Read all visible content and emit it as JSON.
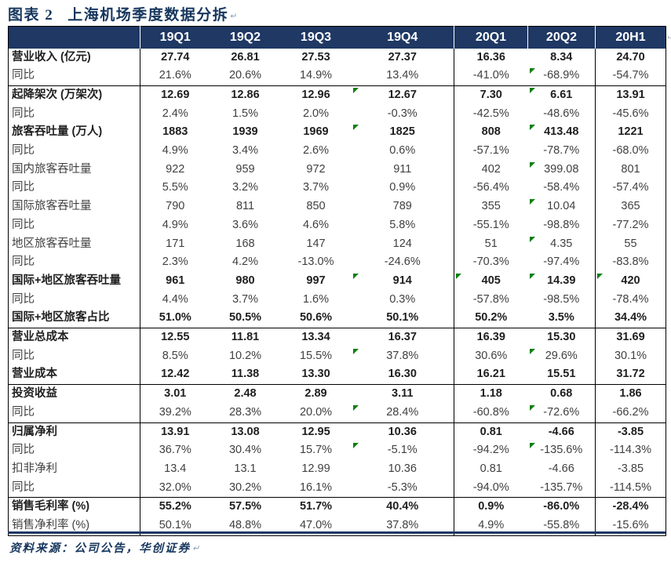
{
  "title": {
    "label": "图表 2",
    "text": "上海机场季度数据分拆",
    "return_mark": "↵"
  },
  "footer": {
    "text": "资料来源：公司公告，华创证券",
    "return_mark": "↵"
  },
  "icons": {
    "cell_flag": "green-corner-triangle",
    "return": "paragraph-return-arrow"
  },
  "colors": {
    "header_bg": "#1F3864",
    "title": "#17375E",
    "body_text": "#404040",
    "bold_text": "#1F1F1F",
    "marker_green": "#0B8010",
    "border": "#000000",
    "rule_navy": "#1F3864",
    "return_mark": "#8CA0BC"
  },
  "table": {
    "columns": [
      "19Q1",
      "19Q2",
      "19Q3",
      "19Q4",
      "20Q1",
      "20Q2",
      "20H1"
    ],
    "rows": [
      {
        "label": "营业收入 (亿元)",
        "bold": true,
        "values": [
          "27.74",
          "26.81",
          "27.53",
          "27.37",
          "16.36",
          "8.34",
          "24.70"
        ],
        "markers": []
      },
      {
        "label": "同比",
        "bold": false,
        "values": [
          "21.6%",
          "20.6%",
          "14.9%",
          "13.4%",
          "-41.0%",
          "-68.9%",
          "-54.7%"
        ],
        "markers": [
          5
        ]
      },
      {
        "label": "起降架次 (万架次)",
        "bold": true,
        "section": true,
        "values": [
          "12.69",
          "12.86",
          "12.96",
          "12.67",
          "7.30",
          "6.61",
          "13.91"
        ],
        "markers": [
          3,
          5
        ]
      },
      {
        "label": "同比",
        "bold": false,
        "values": [
          "2.4%",
          "1.5%",
          "2.0%",
          "-0.3%",
          "-42.5%",
          "-48.6%",
          "-45.6%"
        ],
        "markers": []
      },
      {
        "label": "旅客吞吐量 (万人)",
        "bold": true,
        "values": [
          "1883",
          "1939",
          "1969",
          "1825",
          "808",
          "413.48",
          "1221"
        ],
        "markers": [
          3,
          5
        ]
      },
      {
        "label": "同比",
        "bold": false,
        "values": [
          "4.9%",
          "3.4%",
          "2.6%",
          "0.6%",
          "-57.1%",
          "-78.7%",
          "-68.0%"
        ],
        "markers": []
      },
      {
        "label": "国内旅客吞吐量",
        "bold": false,
        "values": [
          "922",
          "959",
          "972",
          "911",
          "402",
          "399.08",
          "801"
        ],
        "markers": [
          5
        ]
      },
      {
        "label": "同比",
        "bold": false,
        "values": [
          "5.5%",
          "3.2%",
          "3.7%",
          "0.9%",
          "-56.4%",
          "-58.4%",
          "-57.4%"
        ],
        "markers": []
      },
      {
        "label": "国际旅客吞吐量",
        "bold": false,
        "values": [
          "790",
          "811",
          "850",
          "789",
          "355",
          "10.04",
          "365"
        ],
        "markers": [
          5
        ]
      },
      {
        "label": "同比",
        "bold": false,
        "values": [
          "4.9%",
          "3.6%",
          "4.6%",
          "5.8%",
          "-55.1%",
          "-98.8%",
          "-77.2%"
        ],
        "markers": []
      },
      {
        "label": "地区旅客吞吐量",
        "bold": false,
        "values": [
          "171",
          "168",
          "147",
          "124",
          "51",
          "4.35",
          "55"
        ],
        "markers": [
          5
        ]
      },
      {
        "label": "同比",
        "bold": false,
        "values": [
          "2.3%",
          "4.2%",
          "-13.0%",
          "-24.6%",
          "-70.3%",
          "-97.4%",
          "-83.8%"
        ],
        "markers": []
      },
      {
        "label": "国际+地区旅客吞吐量",
        "bold": true,
        "values": [
          "961",
          "980",
          "997",
          "914",
          "405",
          "14.39",
          "420"
        ],
        "markers": [
          3,
          4,
          5,
          6
        ]
      },
      {
        "label": "同比",
        "bold": false,
        "values": [
          "4.4%",
          "3.7%",
          "1.6%",
          "0.3%",
          "-57.8%",
          "-98.5%",
          "-78.4%"
        ],
        "markers": []
      },
      {
        "label": "国际+地区旅客占比",
        "bold": true,
        "values": [
          "51.0%",
          "50.5%",
          "50.6%",
          "50.1%",
          "50.2%",
          "3.5%",
          "34.4%"
        ],
        "markers": []
      },
      {
        "label": "营业总成本",
        "bold": true,
        "section": true,
        "values": [
          "12.55",
          "11.81",
          "13.34",
          "16.37",
          "16.39",
          "15.30",
          "31.69"
        ],
        "markers": []
      },
      {
        "label": "同比",
        "bold": false,
        "values": [
          "8.5%",
          "10.2%",
          "15.5%",
          "37.8%",
          "30.6%",
          "29.6%",
          "30.1%"
        ],
        "markers": [
          3,
          5
        ]
      },
      {
        "label": "营业成本",
        "bold": true,
        "values": [
          "12.42",
          "11.38",
          "13.30",
          "16.30",
          "16.21",
          "15.51",
          "31.72"
        ],
        "markers": []
      },
      {
        "label": "投资收益",
        "bold": true,
        "section": true,
        "values": [
          "3.01",
          "2.48",
          "2.89",
          "3.11",
          "1.18",
          "0.68",
          "1.86"
        ],
        "markers": []
      },
      {
        "label": "同比",
        "bold": false,
        "values": [
          "39.2%",
          "28.3%",
          "20.0%",
          "28.4%",
          "-60.8%",
          "-72.6%",
          "-66.2%"
        ],
        "markers": [
          3,
          5
        ]
      },
      {
        "label": "归属净利",
        "bold": true,
        "section": true,
        "values": [
          "13.91",
          "13.08",
          "12.95",
          "10.36",
          "0.81",
          "-4.66",
          "-3.85"
        ],
        "markers": []
      },
      {
        "label": "同比",
        "bold": false,
        "values": [
          "36.7%",
          "30.4%",
          "15.7%",
          "-5.1%",
          "-94.2%",
          "-135.6%",
          "-114.3%"
        ],
        "markers": [
          3,
          5
        ]
      },
      {
        "label": "扣非净利",
        "bold": false,
        "values": [
          "13.4",
          "13.1",
          "12.99",
          "10.36",
          "0.81",
          "-4.66",
          "-3.85"
        ],
        "markers": []
      },
      {
        "label": "同比",
        "bold": false,
        "values": [
          "32.0%",
          "30.2%",
          "16.1%",
          "-5.3%",
          "-94.0%",
          "-135.7%",
          "-114.5%"
        ],
        "markers": []
      },
      {
        "label": "销售毛利率 (%)",
        "bold": true,
        "section": true,
        "values": [
          "55.2%",
          "57.5%",
          "51.7%",
          "40.4%",
          "0.9%",
          "-86.0%",
          "-28.4%"
        ],
        "markers": []
      },
      {
        "label": "销售净利率 (%)",
        "bold": false,
        "values": [
          "50.1%",
          "48.8%",
          "47.0%",
          "37.8%",
          "4.9%",
          "-55.8%",
          "-15.6%"
        ],
        "markers": []
      }
    ]
  }
}
